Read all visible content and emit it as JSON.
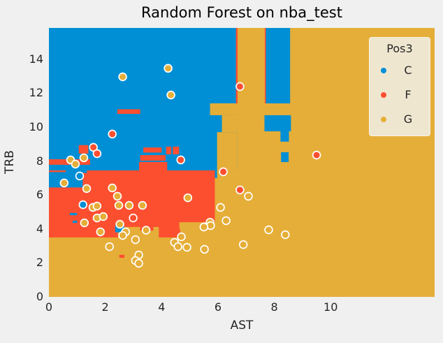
{
  "chart_data": {
    "type": "scatter",
    "subtype": "decision-boundary-classification",
    "title": "Random Forest on nba_test",
    "xlabel": "AST",
    "ylabel": "TRB",
    "xlim": [
      0,
      13.69
    ],
    "ylim": [
      0,
      15.84
    ],
    "xticks": [
      0,
      2,
      4,
      6,
      8,
      10
    ],
    "yticks": [
      0,
      2,
      4,
      6,
      8,
      10,
      12,
      14
    ],
    "grid": false,
    "background_class": "G",
    "colors": {
      "C": "#008fd5",
      "F": "#fc4f30",
      "G": "#e5ae38"
    },
    "marker_edge_color": "#ffffff",
    "figure_bg": "#f0f0f0",
    "legend": {
      "title": "Pos3",
      "position": "upper right",
      "entries": [
        {
          "label": "C",
          "class": "C"
        },
        {
          "label": "F",
          "class": "F"
        },
        {
          "label": "G",
          "class": "G"
        }
      ]
    },
    "regions": [
      {
        "c": "C",
        "x": 0,
        "y": 7.45,
        "w": 6.68,
        "h": 8.4
      },
      {
        "c": "C",
        "x": 4.7,
        "y": 7.0,
        "w": 1.27,
        "h": 0.6
      },
      {
        "c": "F",
        "x": 0,
        "y": 7.78,
        "w": 1.46,
        "h": 0.33
      },
      {
        "c": "F",
        "x": 1.06,
        "y": 8.44,
        "w": 0.34,
        "h": 0.5
      },
      {
        "c": "F",
        "x": 3.35,
        "y": 8.5,
        "w": 0.65,
        "h": 0.3
      },
      {
        "c": "F",
        "x": 4.16,
        "y": 8.4,
        "w": 0.18,
        "h": 0.45
      },
      {
        "c": "F",
        "x": 4.4,
        "y": 8.4,
        "w": 0.22,
        "h": 0.45
      },
      {
        "c": "F",
        "x": 3.24,
        "y": 8.02,
        "w": 0.9,
        "h": 0.33
      },
      {
        "c": "F",
        "x": 2.43,
        "y": 10.78,
        "w": 0.81,
        "h": 0.27
      },
      {
        "c": "F",
        "x": 3.2,
        "y": 7.4,
        "w": 1.0,
        "h": 0.55
      },
      {
        "c": "G",
        "x": 5.97,
        "y": 7.2,
        "w": 0.71,
        "h": 2.5
      },
      {
        "c": "G",
        "x": 6.14,
        "y": 9.7,
        "w": 0.54,
        "h": 1.0
      },
      {
        "c": "G",
        "x": 5.72,
        "y": 10.7,
        "w": 2.88,
        "h": 0.7
      },
      {
        "c": "F",
        "x": 0,
        "y": 3.5,
        "w": 5.89,
        "h": 3.95
      },
      {
        "c": "G",
        "x": 4.63,
        "y": 3.5,
        "w": 1.26,
        "h": 0.9
      },
      {
        "c": "F",
        "x": 3.9,
        "y": 3.63,
        "w": 0.76,
        "h": 0.37
      },
      {
        "c": "G",
        "x": 2.45,
        "y": 3.5,
        "w": 1.45,
        "h": 0.62
      },
      {
        "c": "F",
        "x": 3.24,
        "y": 3.9,
        "w": 0.47,
        "h": 0.42
      },
      {
        "c": "C",
        "x": 2.35,
        "y": 3.8,
        "w": 0.32,
        "h": 0.4
      },
      {
        "c": "C",
        "x": 0,
        "y": 6.45,
        "w": 1.2,
        "h": 0.9
      },
      {
        "c": "C",
        "x": 0.6,
        "y": 7.3,
        "w": 0.75,
        "h": 0.45
      },
      {
        "c": "C",
        "x": 0.74,
        "y": 4.81,
        "w": 0.26,
        "h": 0.13
      },
      {
        "c": "C",
        "x": 0.84,
        "y": 4.36,
        "w": 0.16,
        "h": 0.13
      },
      {
        "c": "F",
        "x": 6.64,
        "y": 11.4,
        "w": 0.06,
        "h": 4.45
      },
      {
        "c": "F",
        "x": 7.66,
        "y": 11.4,
        "w": 0.06,
        "h": 4.45
      },
      {
        "c": "C",
        "x": 7.7,
        "y": 11.4,
        "w": 0.86,
        "h": 4.45
      },
      {
        "c": "C",
        "x": 7.65,
        "y": 9.75,
        "w": 0.94,
        "h": 0.95
      },
      {
        "c": "C",
        "x": 8.22,
        "y": 9.14,
        "w": 0.3,
        "h": 0.61
      },
      {
        "c": "C",
        "x": 8.24,
        "y": 7.94,
        "w": 0.27,
        "h": 0.58
      },
      {
        "c": "F",
        "x": 2.5,
        "y": 2.3,
        "w": 0.18,
        "h": 0.18
      }
    ],
    "series": [
      {
        "name": "C",
        "points": [
          [
            1.09,
            7.12
          ],
          [
            1.21,
            5.43
          ]
        ]
      },
      {
        "name": "F",
        "points": [
          [
            2.25,
            9.59
          ],
          [
            1.58,
            8.81
          ],
          [
            1.71,
            8.44
          ],
          [
            4.68,
            8.07
          ],
          [
            6.19,
            7.37
          ],
          [
            6.78,
            6.3
          ],
          [
            6.78,
            12.39
          ],
          [
            9.5,
            8.35
          ],
          [
            2.99,
            4.65
          ]
        ]
      },
      {
        "name": "G",
        "points": [
          [
            2.62,
            12.96
          ],
          [
            4.23,
            13.46
          ],
          [
            4.33,
            11.89
          ],
          [
            0.77,
            8.07
          ],
          [
            1.24,
            8.19
          ],
          [
            0.94,
            7.82
          ],
          [
            0.54,
            6.71
          ],
          [
            1.34,
            6.38
          ],
          [
            2.25,
            6.42
          ],
          [
            2.43,
            5.93
          ],
          [
            1.56,
            5.27
          ],
          [
            1.71,
            5.35
          ],
          [
            2.48,
            5.39
          ],
          [
            2.85,
            5.39
          ],
          [
            3.32,
            5.39
          ],
          [
            1.26,
            4.36
          ],
          [
            1.71,
            4.65
          ],
          [
            1.93,
            4.73
          ],
          [
            2.52,
            4.28
          ],
          [
            1.83,
            3.83
          ],
          [
            2.72,
            3.83
          ],
          [
            2.62,
            3.62
          ],
          [
            3.45,
            3.93
          ],
          [
            3.07,
            3.37
          ],
          [
            2.15,
            2.96
          ],
          [
            3.19,
            2.47
          ],
          [
            3.07,
            2.14
          ],
          [
            3.19,
            1.98
          ],
          [
            4.93,
            5.84
          ],
          [
            6.09,
            5.27
          ],
          [
            7.08,
            5.93
          ],
          [
            6.29,
            4.49
          ],
          [
            5.72,
            4.4
          ],
          [
            5.74,
            4.2
          ],
          [
            5.5,
            4.12
          ],
          [
            4.7,
            3.54
          ],
          [
            4.46,
            3.21
          ],
          [
            4.58,
            2.96
          ],
          [
            4.9,
            2.92
          ],
          [
            5.52,
            2.8
          ],
          [
            6.9,
            3.08
          ],
          [
            7.8,
            3.95
          ],
          [
            8.39,
            3.66
          ]
        ]
      }
    ]
  }
}
